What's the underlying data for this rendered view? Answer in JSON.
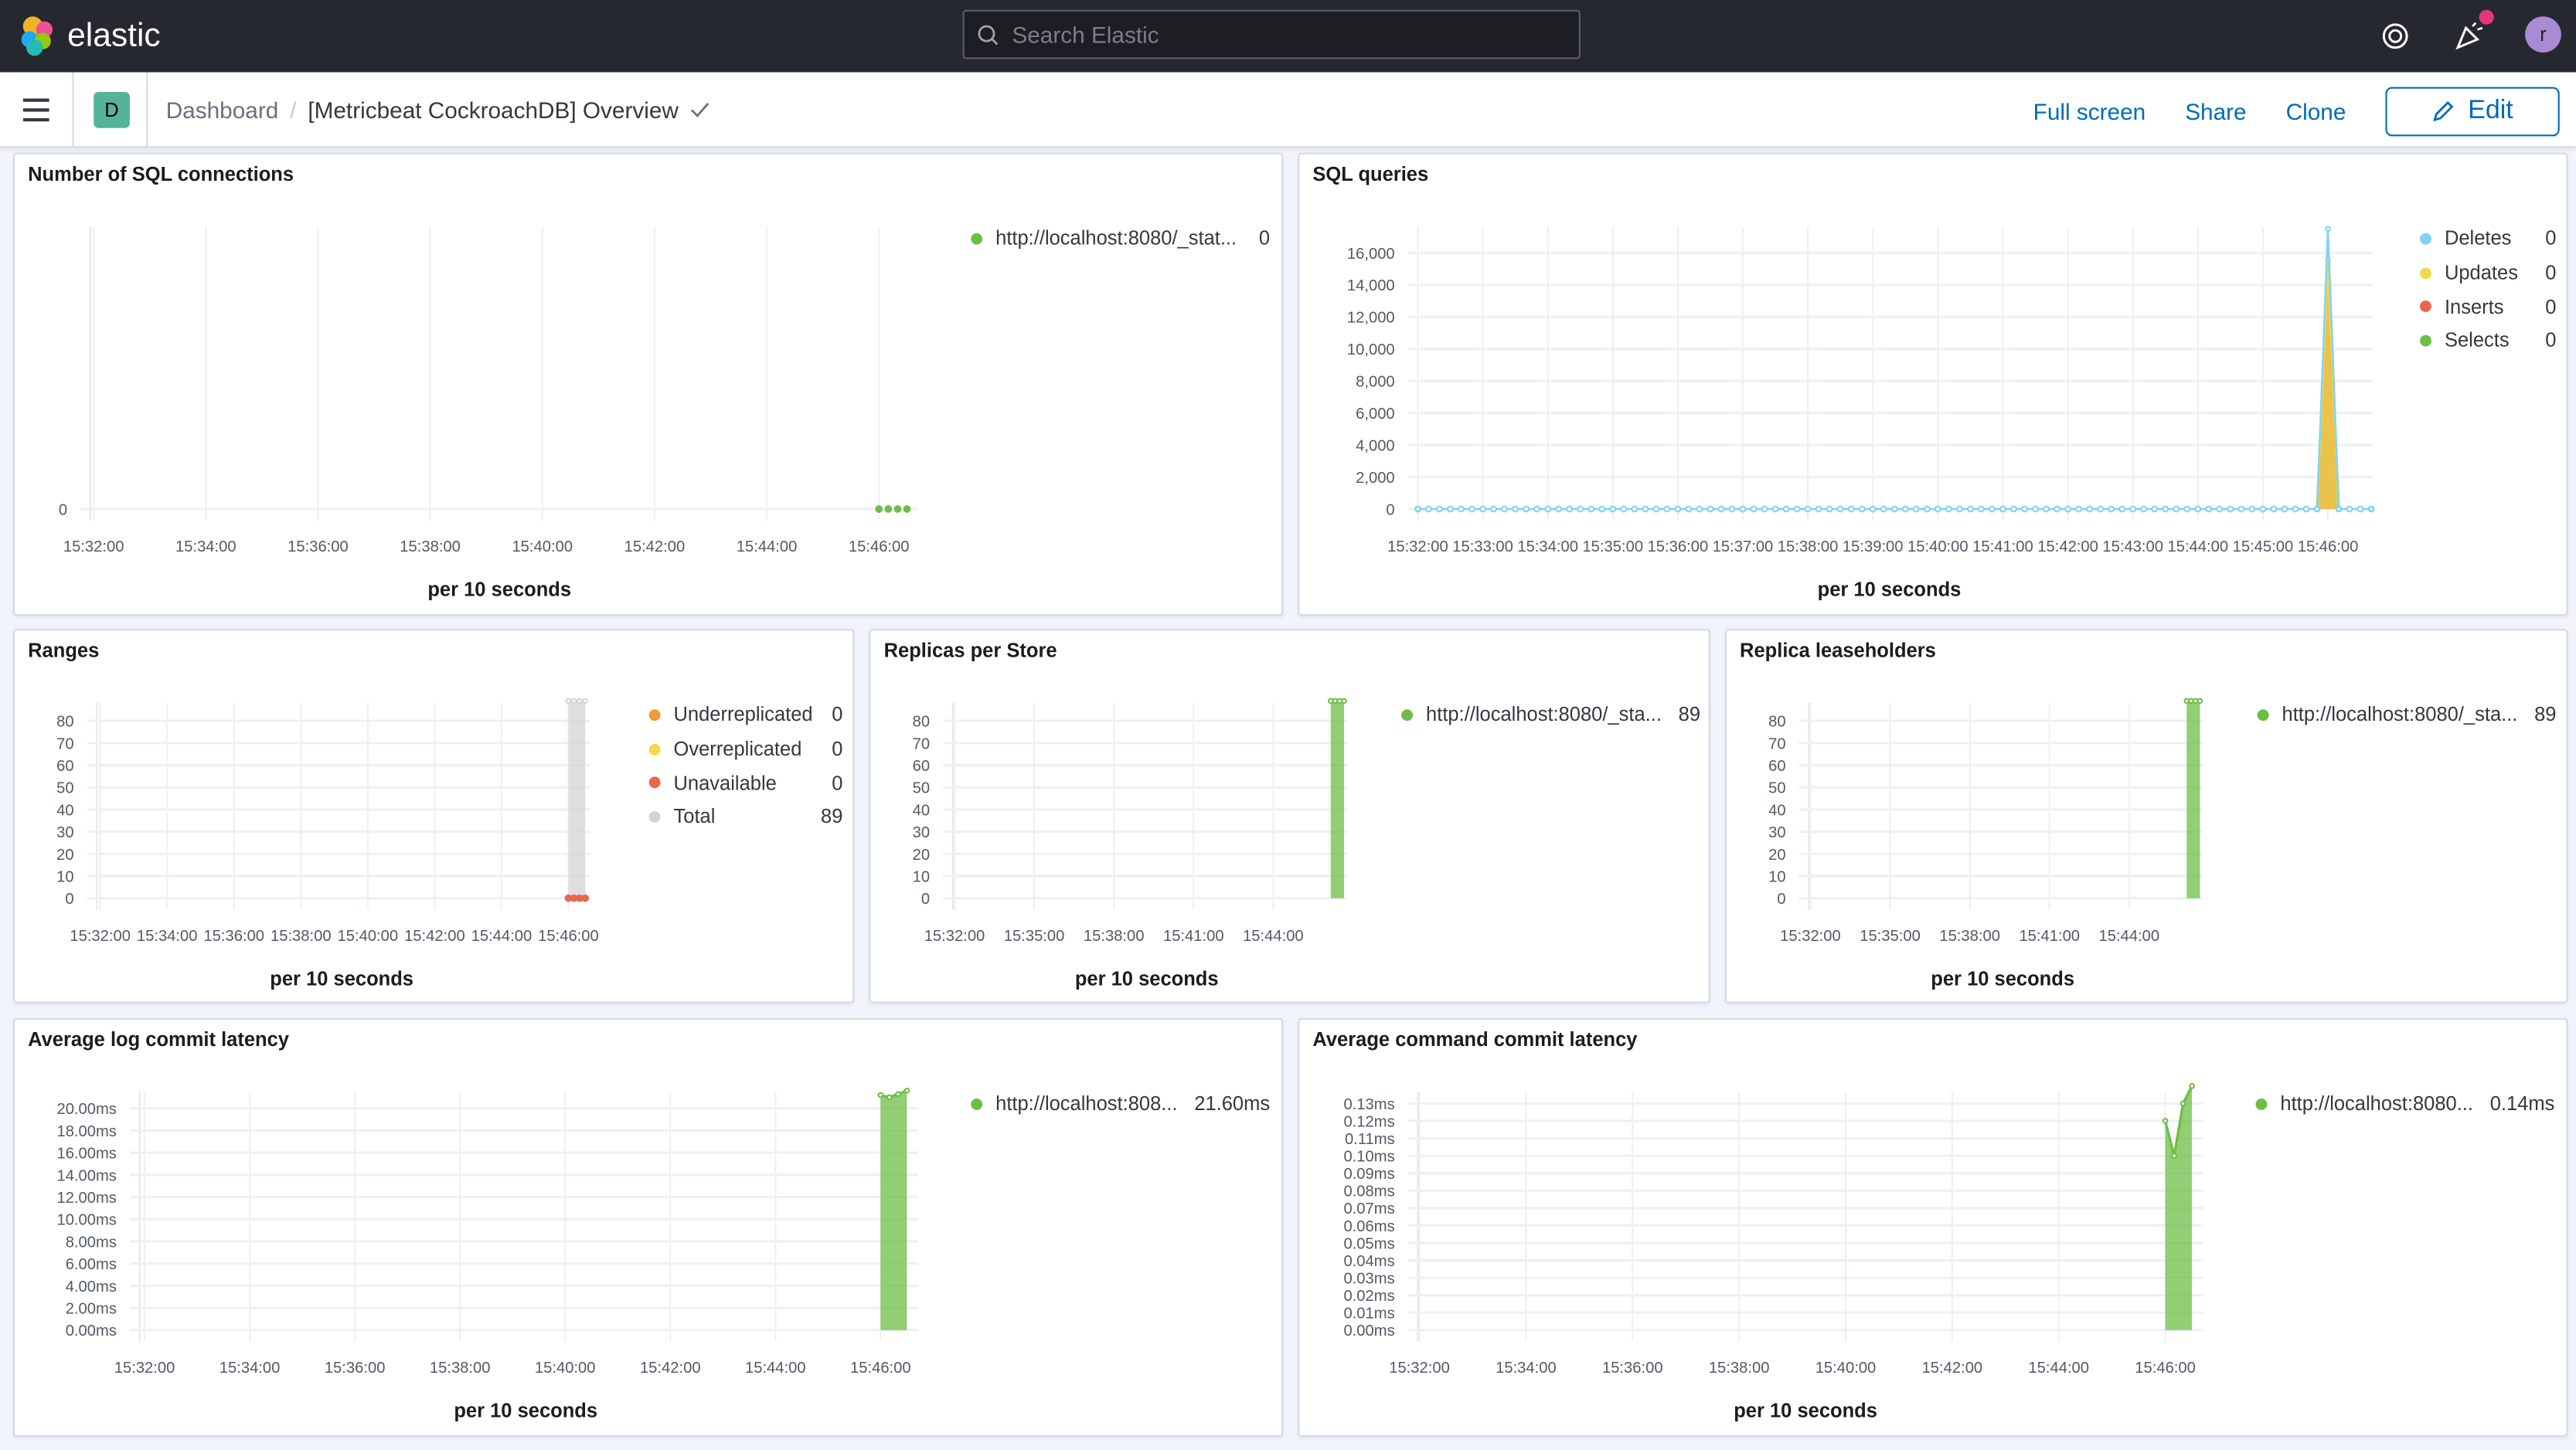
{
  "topbar": {
    "brand": "elastic",
    "search_placeholder": "Search Elastic",
    "avatar_initial": "r"
  },
  "navbar": {
    "space_initial": "D",
    "breadcrumb": [
      "Dashboard",
      "[Metricbeat CockroachDB] Overview"
    ],
    "full_screen": "Full screen",
    "share": "Share",
    "clone": "Clone",
    "edit": "Edit"
  },
  "colors": {
    "green": "#6dbe45",
    "blue": "#7fd3f6",
    "yellow": "#f1d94a",
    "red": "#e7664c",
    "orange": "#ee9a3a",
    "gray": "#d3d3d3",
    "link": "#006bb8"
  },
  "panels": [
    {
      "title": "Number of SQL connections",
      "xlabel": "per 10 seconds",
      "yticks": [
        "0"
      ],
      "xticks": [
        "15:32:00",
        "15:34:00",
        "15:36:00",
        "15:38:00",
        "15:40:00",
        "15:42:00",
        "15:44:00",
        "15:46:00"
      ],
      "legend": [
        {
          "label": "http://localhost:8080/_stat...",
          "value": "0",
          "color": "#6dbe45"
        }
      ],
      "series": [
        {
          "color": "#6dbe45",
          "style": "dots",
          "points": [
            [
              "15:46:00",
              0
            ],
            [
              "15:46:10",
              0
            ],
            [
              "15:46:20",
              0
            ],
            [
              "15:46:30",
              0
            ]
          ]
        }
      ]
    },
    {
      "title": "SQL queries",
      "xlabel": "per 10 seconds",
      "yticks": [
        "0",
        "2,000",
        "4,000",
        "6,000",
        "8,000",
        "10,000",
        "12,000",
        "14,000",
        "16,000"
      ],
      "xticks": [
        "15:32:00",
        "15:33:00",
        "15:34:00",
        "15:35:00",
        "15:36:00",
        "15:37:00",
        "15:38:00",
        "15:39:00",
        "15:40:00",
        "15:41:00",
        "15:42:00",
        "15:43:00",
        "15:44:00",
        "15:45:00",
        "15:46:00"
      ],
      "legend": [
        {
          "label": "Deletes",
          "value": "0",
          "color": "#7fd3f6"
        },
        {
          "label": "Updates",
          "value": "0",
          "color": "#f1d94a"
        },
        {
          "label": "Inserts",
          "value": "0",
          "color": "#e7664c"
        },
        {
          "label": "Selects",
          "value": "0",
          "color": "#6dbe45"
        }
      ],
      "series": [
        {
          "color": "#6dbe45",
          "style": "area",
          "points": [
            [
              "15:45:50",
              0
            ],
            [
              "15:46:00",
              11600
            ],
            [
              "15:46:10",
              0
            ]
          ]
        },
        {
          "color": "#e7664c",
          "style": "area",
          "points": [
            [
              "15:45:50",
              0
            ],
            [
              "15:46:00",
              14500
            ],
            [
              "15:46:10",
              0
            ]
          ]
        },
        {
          "color": "#f1d94a",
          "style": "area",
          "points": [
            [
              "15:45:50",
              0
            ],
            [
              "15:46:00",
              15500
            ],
            [
              "15:46:10",
              0
            ]
          ]
        },
        {
          "color": "#7fd3f6",
          "style": "baseline",
          "points": [
            [
              "15:32:00",
              0
            ],
            [
              "15:45:50",
              0
            ],
            [
              "15:46:00",
              17500
            ],
            [
              "15:46:10",
              0
            ],
            [
              "15:46:40",
              0
            ]
          ]
        }
      ]
    },
    {
      "title": "Ranges",
      "xlabel": "per 10 seconds",
      "yticks": [
        "0",
        "10",
        "20",
        "30",
        "40",
        "50",
        "60",
        "70",
        "80"
      ],
      "xticks": [
        "15:32:00",
        "15:34:00",
        "15:36:00",
        "15:38:00",
        "15:40:00",
        "15:42:00",
        "15:44:00",
        "15:46:00"
      ],
      "legend": [
        {
          "label": "Underreplicated",
          "value": "0",
          "color": "#ee9a3a"
        },
        {
          "label": "Overreplicated",
          "value": "0",
          "color": "#f1d94a"
        },
        {
          "label": "Unavailable",
          "value": "0",
          "color": "#e7664c"
        },
        {
          "label": "Total",
          "value": "89",
          "color": "#d3d3d3"
        }
      ],
      "series": [
        {
          "color": "#d3d3d3",
          "style": "area",
          "points": [
            [
              "15:46:00",
              89
            ],
            [
              "15:46:10",
              89
            ],
            [
              "15:46:20",
              89
            ],
            [
              "15:46:30",
              89
            ]
          ]
        },
        {
          "color": "#e7664c",
          "style": "dots",
          "points": [
            [
              "15:46:00",
              0
            ],
            [
              "15:46:10",
              0
            ],
            [
              "15:46:20",
              0
            ],
            [
              "15:46:30",
              0
            ]
          ]
        }
      ]
    },
    {
      "title": "Replicas per Store",
      "xlabel": "per 10 seconds",
      "yticks": [
        "0",
        "10",
        "20",
        "30",
        "40",
        "50",
        "60",
        "70",
        "80"
      ],
      "xticks": [
        "15:32:00",
        "15:35:00",
        "15:38:00",
        "15:41:00",
        "15:44:00"
      ],
      "legend": [
        {
          "label": "http://localhost:8080/_sta...",
          "value": "89",
          "color": "#6dbe45"
        }
      ],
      "series": [
        {
          "color": "#6dbe45",
          "style": "area",
          "points": [
            [
              "15:46:10",
              89
            ],
            [
              "15:46:20",
              89
            ],
            [
              "15:46:30",
              89
            ],
            [
              "15:46:40",
              89
            ]
          ]
        }
      ]
    },
    {
      "title": "Replica leaseholders",
      "xlabel": "per 10 seconds",
      "yticks": [
        "0",
        "10",
        "20",
        "30",
        "40",
        "50",
        "60",
        "70",
        "80"
      ],
      "xticks": [
        "15:32:00",
        "15:35:00",
        "15:38:00",
        "15:41:00",
        "15:44:00"
      ],
      "legend": [
        {
          "label": "http://localhost:8080/_sta...",
          "value": "89",
          "color": "#6dbe45"
        }
      ],
      "series": [
        {
          "color": "#6dbe45",
          "style": "area",
          "points": [
            [
              "15:46:10",
              89
            ],
            [
              "15:46:20",
              89
            ],
            [
              "15:46:30",
              89
            ],
            [
              "15:46:40",
              89
            ]
          ]
        }
      ]
    },
    {
      "title": "Average log commit latency",
      "xlabel": "per 10 seconds",
      "yticks": [
        "0.00ms",
        "2.00ms",
        "4.00ms",
        "6.00ms",
        "8.00ms",
        "10.00ms",
        "12.00ms",
        "14.00ms",
        "16.00ms",
        "18.00ms",
        "20.00ms"
      ],
      "xticks": [
        "15:32:00",
        "15:34:00",
        "15:36:00",
        "15:38:00",
        "15:40:00",
        "15:42:00",
        "15:44:00",
        "15:46:00"
      ],
      "legend": [
        {
          "label": "http://localhost:808...",
          "value": "21.60ms",
          "color": "#6dbe45"
        }
      ],
      "series": [
        {
          "color": "#6dbe45",
          "style": "area",
          "points": [
            [
              "15:46:00",
              21.2
            ],
            [
              "15:46:10",
              21.0
            ],
            [
              "15:46:20",
              21.3
            ],
            [
              "15:46:30",
              21.6
            ]
          ]
        }
      ]
    },
    {
      "title": "Average command commit latency",
      "xlabel": "per 10 seconds",
      "yticks": [
        "0.00ms",
        "0.01ms",
        "0.02ms",
        "0.03ms",
        "0.04ms",
        "0.05ms",
        "0.06ms",
        "0.07ms",
        "0.08ms",
        "0.09ms",
        "0.10ms",
        "0.11ms",
        "0.12ms",
        "0.13ms"
      ],
      "xticks": [
        "15:32:00",
        "15:34:00",
        "15:36:00",
        "15:38:00",
        "15:40:00",
        "15:42:00",
        "15:44:00",
        "15:46:00"
      ],
      "legend": [
        {
          "label": "http://localhost:8080...",
          "value": "0.14ms",
          "color": "#6dbe45"
        }
      ],
      "series": [
        {
          "color": "#6dbe45",
          "style": "area",
          "points": [
            [
              "15:46:00",
              0.12
            ],
            [
              "15:46:10",
              0.1
            ],
            [
              "15:46:20",
              0.13
            ],
            [
              "15:46:30",
              0.14
            ]
          ]
        }
      ]
    }
  ]
}
